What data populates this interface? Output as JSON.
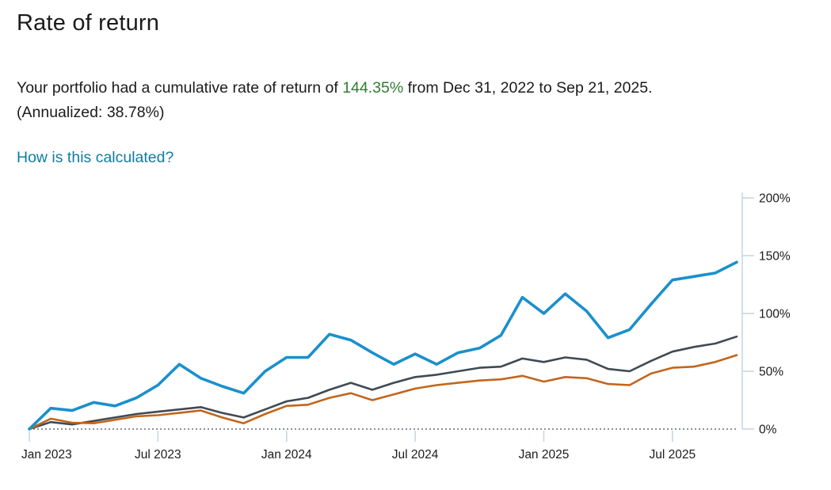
{
  "header": {
    "title": "Rate of return"
  },
  "summary": {
    "text_before": "Your portfolio had a cumulative rate of return of ",
    "highlight_value": "144.35%",
    "text_after": " from Dec 31, 2022 to Sep 21, 2025. (Annualized: 38.78%)",
    "link_label": "How is this calculated?"
  },
  "colors": {
    "highlight_green": "#2e7d32",
    "link_blue": "#0f7ca6",
    "portfolio_blue": "#1a90cc",
    "dark_gray_line": "#3f4a55",
    "orange_line": "#c2661c",
    "axis_line": "#c9d5e8",
    "zero_dotted": "#8d929b",
    "text": "#1b1b1b"
  },
  "chart_data": {
    "type": "line",
    "title": "",
    "xlabel": "",
    "ylabel": "",
    "x_range_dates": [
      "Dec 31, 2022",
      "Sep 21, 2025"
    ],
    "ylim": [
      0,
      200
    ],
    "y_ticks": [
      0,
      50,
      100,
      150,
      200
    ],
    "y_tick_labels": [
      "0%",
      "50%",
      "100%",
      "150%",
      "200%"
    ],
    "x_tick_labels": [
      "Jan 2023",
      "Jul 2023",
      "Jan 2024",
      "Jul 2024",
      "Jan 2025",
      "Jul 2025"
    ],
    "x_tick_month_index": [
      0,
      6,
      12,
      18,
      24,
      30
    ],
    "grid": "zero-line-only",
    "legend": "none",
    "x": [
      "Dec 2022",
      "Jan 2023",
      "Feb 2023",
      "Mar 2023",
      "Apr 2023",
      "May 2023",
      "Jun 2023",
      "Jul 2023",
      "Aug 2023",
      "Sep 2023",
      "Oct 2023",
      "Nov 2023",
      "Dec 2023",
      "Jan 2024",
      "Feb 2024",
      "Mar 2024",
      "Apr 2024",
      "May 2024",
      "Jun 2024",
      "Jul 2024",
      "Aug 2024",
      "Sep 2024",
      "Oct 2024",
      "Nov 2024",
      "Dec 2024",
      "Jan 2025",
      "Feb 2025",
      "Mar 2025",
      "Apr 2025",
      "May 2025",
      "Jun 2025",
      "Jul 2025",
      "Aug 2025",
      "Sep 2025"
    ],
    "series": [
      {
        "name": "portfolio-blue",
        "color": "#1a90cc",
        "width": 3.6,
        "values": [
          0,
          18,
          16,
          23,
          20,
          27,
          38,
          56,
          44,
          37,
          31,
          50,
          62,
          62,
          82,
          77,
          66,
          56,
          65,
          56,
          66,
          70,
          81,
          114,
          100,
          117,
          102,
          79,
          86,
          108,
          129,
          132,
          135,
          144.35
        ]
      },
      {
        "name": "dark-gray",
        "color": "#3f4a55",
        "width": 2.6,
        "values": [
          0,
          6,
          4,
          7,
          10,
          13,
          15,
          17,
          19,
          14,
          10,
          17,
          24,
          27,
          34,
          40,
          34,
          40,
          45,
          47,
          50,
          53,
          54,
          61,
          58,
          62,
          60,
          52,
          50,
          59,
          67,
          71,
          74,
          80
        ]
      },
      {
        "name": "orange",
        "color": "#c2661c",
        "width": 2.6,
        "values": [
          0,
          9,
          5.5,
          5,
          8,
          11,
          12,
          14,
          16,
          10,
          5,
          13,
          20,
          21,
          27,
          31,
          25,
          30,
          35,
          38,
          40,
          42,
          43,
          46,
          41,
          45,
          44,
          39,
          38,
          48,
          53,
          54,
          58,
          64
        ]
      }
    ]
  }
}
